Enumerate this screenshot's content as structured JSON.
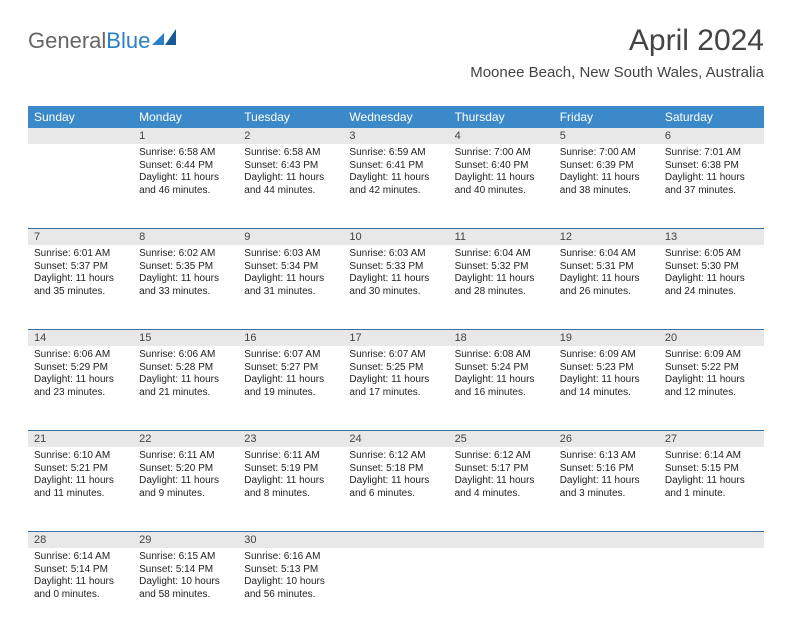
{
  "logo": {
    "part1": "General",
    "part2": "Blue"
  },
  "title": "April 2024",
  "subtitle": "Moonee Beach, New South Wales, Australia",
  "day_names": [
    "Sunday",
    "Monday",
    "Tuesday",
    "Wednesday",
    "Thursday",
    "Friday",
    "Saturday"
  ],
  "colors": {
    "header_bg": "#3b89c9",
    "header_text": "#ffffff",
    "daynum_bg": "#e8e8e8",
    "border": "#3b6fa0",
    "text": "#222222",
    "title_text": "#444444",
    "logo_gray": "#666666",
    "logo_blue": "#2b7fc4"
  },
  "fonts": {
    "title_size": 30,
    "subtitle_size": 15,
    "dayhead_size": 12,
    "daynum_size": 11,
    "cell_size": 10
  },
  "weeks": [
    {
      "nums": [
        "",
        "1",
        "2",
        "3",
        "4",
        "5",
        "6"
      ],
      "cells": [
        {
          "sunrise": "",
          "sunset": "",
          "daylight": ""
        },
        {
          "sunrise": "Sunrise: 6:58 AM",
          "sunset": "Sunset: 6:44 PM",
          "daylight": "Daylight: 11 hours and 46 minutes."
        },
        {
          "sunrise": "Sunrise: 6:58 AM",
          "sunset": "Sunset: 6:43 PM",
          "daylight": "Daylight: 11 hours and 44 minutes."
        },
        {
          "sunrise": "Sunrise: 6:59 AM",
          "sunset": "Sunset: 6:41 PM",
          "daylight": "Daylight: 11 hours and 42 minutes."
        },
        {
          "sunrise": "Sunrise: 7:00 AM",
          "sunset": "Sunset: 6:40 PM",
          "daylight": "Daylight: 11 hours and 40 minutes."
        },
        {
          "sunrise": "Sunrise: 7:00 AM",
          "sunset": "Sunset: 6:39 PM",
          "daylight": "Daylight: 11 hours and 38 minutes."
        },
        {
          "sunrise": "Sunrise: 7:01 AM",
          "sunset": "Sunset: 6:38 PM",
          "daylight": "Daylight: 11 hours and 37 minutes."
        }
      ]
    },
    {
      "nums": [
        "7",
        "8",
        "9",
        "10",
        "11",
        "12",
        "13"
      ],
      "cells": [
        {
          "sunrise": "Sunrise: 6:01 AM",
          "sunset": "Sunset: 5:37 PM",
          "daylight": "Daylight: 11 hours and 35 minutes."
        },
        {
          "sunrise": "Sunrise: 6:02 AM",
          "sunset": "Sunset: 5:35 PM",
          "daylight": "Daylight: 11 hours and 33 minutes."
        },
        {
          "sunrise": "Sunrise: 6:03 AM",
          "sunset": "Sunset: 5:34 PM",
          "daylight": "Daylight: 11 hours and 31 minutes."
        },
        {
          "sunrise": "Sunrise: 6:03 AM",
          "sunset": "Sunset: 5:33 PM",
          "daylight": "Daylight: 11 hours and 30 minutes."
        },
        {
          "sunrise": "Sunrise: 6:04 AM",
          "sunset": "Sunset: 5:32 PM",
          "daylight": "Daylight: 11 hours and 28 minutes."
        },
        {
          "sunrise": "Sunrise: 6:04 AM",
          "sunset": "Sunset: 5:31 PM",
          "daylight": "Daylight: 11 hours and 26 minutes."
        },
        {
          "sunrise": "Sunrise: 6:05 AM",
          "sunset": "Sunset: 5:30 PM",
          "daylight": "Daylight: 11 hours and 24 minutes."
        }
      ]
    },
    {
      "nums": [
        "14",
        "15",
        "16",
        "17",
        "18",
        "19",
        "20"
      ],
      "cells": [
        {
          "sunrise": "Sunrise: 6:06 AM",
          "sunset": "Sunset: 5:29 PM",
          "daylight": "Daylight: 11 hours and 23 minutes."
        },
        {
          "sunrise": "Sunrise: 6:06 AM",
          "sunset": "Sunset: 5:28 PM",
          "daylight": "Daylight: 11 hours and 21 minutes."
        },
        {
          "sunrise": "Sunrise: 6:07 AM",
          "sunset": "Sunset: 5:27 PM",
          "daylight": "Daylight: 11 hours and 19 minutes."
        },
        {
          "sunrise": "Sunrise: 6:07 AM",
          "sunset": "Sunset: 5:25 PM",
          "daylight": "Daylight: 11 hours and 17 minutes."
        },
        {
          "sunrise": "Sunrise: 6:08 AM",
          "sunset": "Sunset: 5:24 PM",
          "daylight": "Daylight: 11 hours and 16 minutes."
        },
        {
          "sunrise": "Sunrise: 6:09 AM",
          "sunset": "Sunset: 5:23 PM",
          "daylight": "Daylight: 11 hours and 14 minutes."
        },
        {
          "sunrise": "Sunrise: 6:09 AM",
          "sunset": "Sunset: 5:22 PM",
          "daylight": "Daylight: 11 hours and 12 minutes."
        }
      ]
    },
    {
      "nums": [
        "21",
        "22",
        "23",
        "24",
        "25",
        "26",
        "27"
      ],
      "cells": [
        {
          "sunrise": "Sunrise: 6:10 AM",
          "sunset": "Sunset: 5:21 PM",
          "daylight": "Daylight: 11 hours and 11 minutes."
        },
        {
          "sunrise": "Sunrise: 6:11 AM",
          "sunset": "Sunset: 5:20 PM",
          "daylight": "Daylight: 11 hours and 9 minutes."
        },
        {
          "sunrise": "Sunrise: 6:11 AM",
          "sunset": "Sunset: 5:19 PM",
          "daylight": "Daylight: 11 hours and 8 minutes."
        },
        {
          "sunrise": "Sunrise: 6:12 AM",
          "sunset": "Sunset: 5:18 PM",
          "daylight": "Daylight: 11 hours and 6 minutes."
        },
        {
          "sunrise": "Sunrise: 6:12 AM",
          "sunset": "Sunset: 5:17 PM",
          "daylight": "Daylight: 11 hours and 4 minutes."
        },
        {
          "sunrise": "Sunrise: 6:13 AM",
          "sunset": "Sunset: 5:16 PM",
          "daylight": "Daylight: 11 hours and 3 minutes."
        },
        {
          "sunrise": "Sunrise: 6:14 AM",
          "sunset": "Sunset: 5:15 PM",
          "daylight": "Daylight: 11 hours and 1 minute."
        }
      ]
    },
    {
      "nums": [
        "28",
        "29",
        "30",
        "",
        "",
        "",
        ""
      ],
      "cells": [
        {
          "sunrise": "Sunrise: 6:14 AM",
          "sunset": "Sunset: 5:14 PM",
          "daylight": "Daylight: 11 hours and 0 minutes."
        },
        {
          "sunrise": "Sunrise: 6:15 AM",
          "sunset": "Sunset: 5:14 PM",
          "daylight": "Daylight: 10 hours and 58 minutes."
        },
        {
          "sunrise": "Sunrise: 6:16 AM",
          "sunset": "Sunset: 5:13 PM",
          "daylight": "Daylight: 10 hours and 56 minutes."
        },
        {
          "sunrise": "",
          "sunset": "",
          "daylight": ""
        },
        {
          "sunrise": "",
          "sunset": "",
          "daylight": ""
        },
        {
          "sunrise": "",
          "sunset": "",
          "daylight": ""
        },
        {
          "sunrise": "",
          "sunset": "",
          "daylight": ""
        }
      ]
    }
  ]
}
